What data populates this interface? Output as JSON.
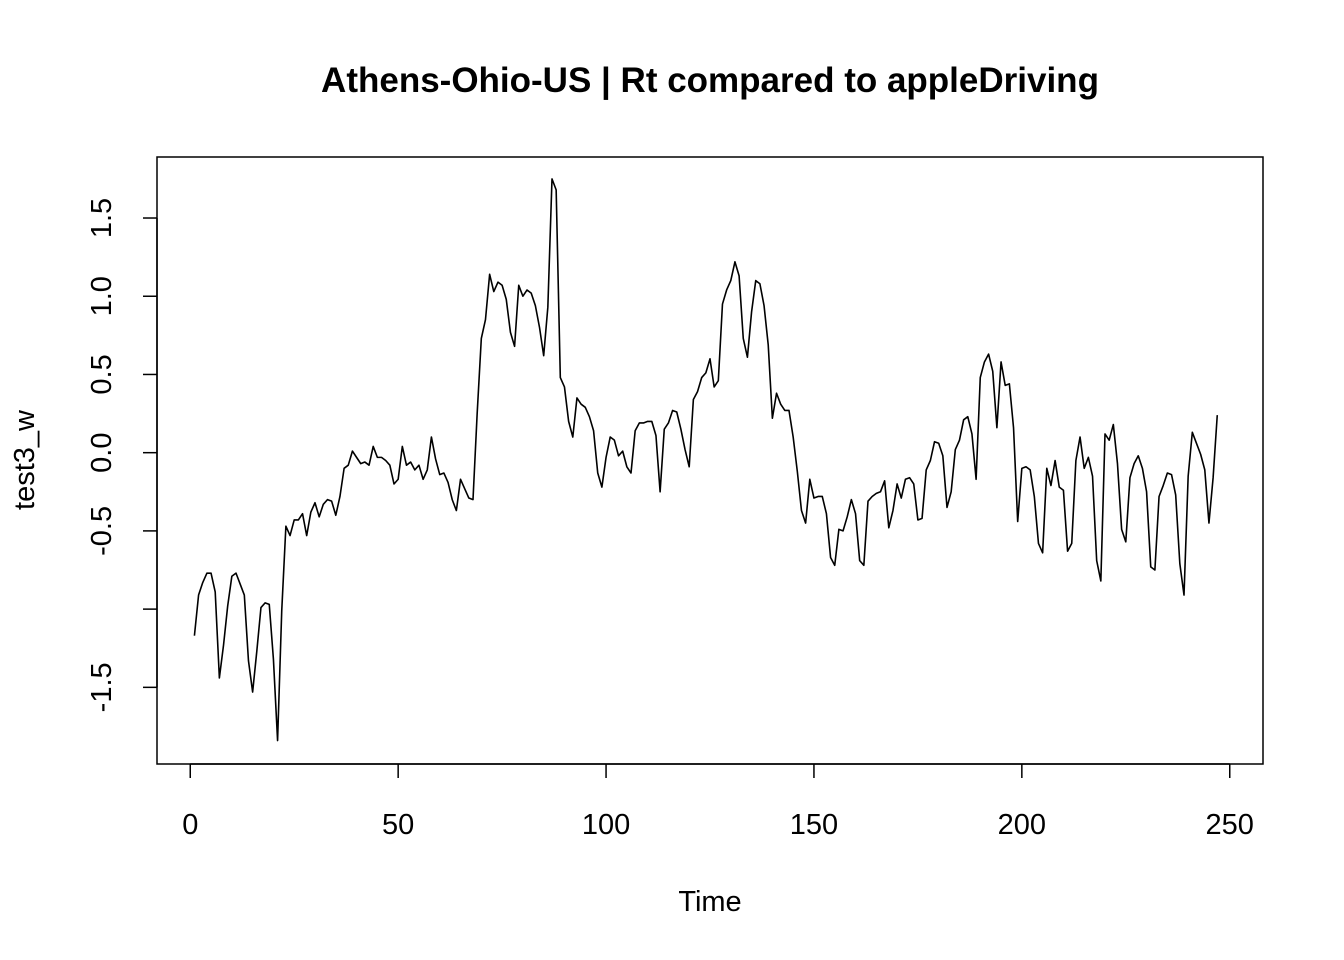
{
  "chart_data": {
    "type": "line",
    "title": "Athens-Ohio-US | Rt compared to appleDriving",
    "xlabel": "Time",
    "ylabel": "test3_w",
    "xlim": [
      -8,
      258
    ],
    "ylim": [
      -1.99,
      1.89
    ],
    "x_ticks": [
      0,
      50,
      100,
      150,
      200,
      250
    ],
    "x_tick_labels": [
      "0",
      "50",
      "100",
      "150",
      "200",
      "250"
    ],
    "y_ticks": [
      -1.5,
      -1.0,
      -0.5,
      0.0,
      0.5,
      1.0,
      1.5
    ],
    "y_tick_labels": [
      "-1.5",
      "",
      "-0.5",
      "0.0",
      "0.5",
      "1.0",
      "1.5"
    ],
    "grid": false,
    "line_color": "#000000",
    "series": [
      {
        "x_start": 1,
        "x_step": 1,
        "values": [
          -1.17,
          -0.91,
          -0.83,
          -0.77,
          -0.77,
          -0.89,
          -1.44,
          -1.23,
          -0.98,
          -0.79,
          -0.77,
          -0.84,
          -0.91,
          -1.33,
          -1.53,
          -1.27,
          -0.99,
          -0.96,
          -0.97,
          -1.32,
          -1.84,
          -1.01,
          -0.47,
          -0.53,
          -0.43,
          -0.43,
          -0.39,
          -0.53,
          -0.38,
          -0.32,
          -0.41,
          -0.33,
          -0.3,
          -0.31,
          -0.4,
          -0.28,
          -0.1,
          -0.08,
          0.01,
          -0.03,
          -0.07,
          -0.06,
          -0.08,
          0.04,
          -0.03,
          -0.03,
          -0.05,
          -0.08,
          -0.2,
          -0.17,
          0.04,
          -0.08,
          -0.06,
          -0.11,
          -0.08,
          -0.17,
          -0.11,
          0.1,
          -0.04,
          -0.14,
          -0.13,
          -0.19,
          -0.3,
          -0.37,
          -0.17,
          -0.23,
          -0.29,
          -0.3,
          0.25,
          0.73,
          0.85,
          1.14,
          1.03,
          1.09,
          1.07,
          0.98,
          0.77,
          0.68,
          1.07,
          1.0,
          1.04,
          1.02,
          0.94,
          0.8,
          0.62,
          0.93,
          1.75,
          1.68,
          0.48,
          0.42,
          0.2,
          0.1,
          0.35,
          0.31,
          0.29,
          0.23,
          0.14,
          -0.13,
          -0.22,
          -0.03,
          0.1,
          0.08,
          -0.02,
          0.01,
          -0.09,
          -0.13,
          0.14,
          0.19,
          0.19,
          0.2,
          0.2,
          0.11,
          -0.25,
          0.15,
          0.19,
          0.27,
          0.26,
          0.15,
          0.02,
          -0.09,
          0.34,
          0.39,
          0.48,
          0.51,
          0.6,
          0.42,
          0.46,
          0.95,
          1.04,
          1.1,
          1.22,
          1.13,
          0.73,
          0.61,
          0.9,
          1.1,
          1.08,
          0.94,
          0.69,
          0.22,
          0.38,
          0.31,
          0.27,
          0.27,
          0.1,
          -0.12,
          -0.37,
          -0.45,
          -0.17,
          -0.29,
          -0.28,
          -0.28,
          -0.39,
          -0.67,
          -0.72,
          -0.49,
          -0.5,
          -0.41,
          -0.3,
          -0.39,
          -0.69,
          -0.72,
          -0.31,
          -0.28,
          -0.26,
          -0.25,
          -0.18,
          -0.48,
          -0.37,
          -0.2,
          -0.29,
          -0.17,
          -0.16,
          -0.2,
          -0.43,
          -0.42,
          -0.11,
          -0.05,
          0.07,
          0.06,
          -0.02,
          -0.35,
          -0.25,
          0.02,
          0.08,
          0.21,
          0.23,
          0.12,
          -0.17,
          0.48,
          0.58,
          0.63,
          0.52,
          0.16,
          0.58,
          0.43,
          0.44,
          0.16,
          -0.44,
          -0.1,
          -0.09,
          -0.11,
          -0.28,
          -0.58,
          -0.64,
          -0.1,
          -0.21,
          -0.05,
          -0.22,
          -0.24,
          -0.63,
          -0.58,
          -0.05,
          0.1,
          -0.1,
          -0.03,
          -0.15,
          -0.69,
          -0.82,
          0.12,
          0.08,
          0.18,
          -0.07,
          -0.49,
          -0.57,
          -0.16,
          -0.07,
          -0.02,
          -0.1,
          -0.25,
          -0.73,
          -0.75,
          -0.28,
          -0.21,
          -0.13,
          -0.14,
          -0.27,
          -0.71,
          -0.91,
          -0.15,
          0.13,
          0.06,
          -0.01,
          -0.11,
          -0.45,
          -0.16,
          0.24
        ]
      }
    ]
  }
}
